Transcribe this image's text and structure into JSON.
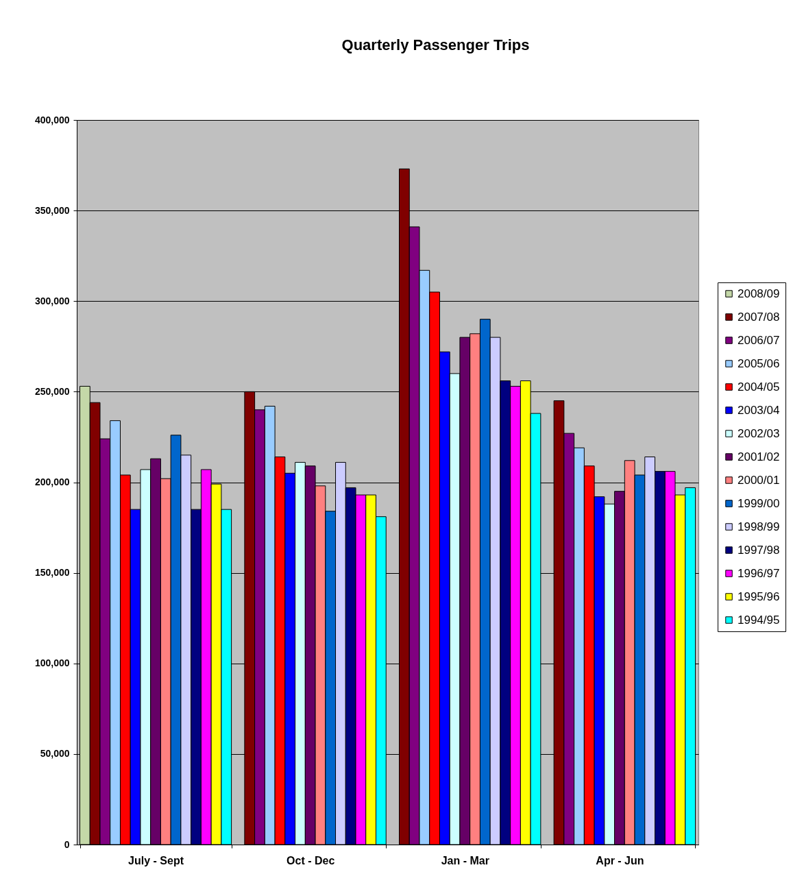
{
  "chart_data": {
    "type": "bar",
    "title": "Quarterly Passenger Trips",
    "categories": [
      "July - Sept",
      "Oct - Dec",
      "Jan - Mar",
      "Apr - Jun"
    ],
    "series": [
      {
        "name": "2008/09",
        "color": "#c4d8a8",
        "values": [
          253000,
          null,
          null,
          null
        ]
      },
      {
        "name": "2007/08",
        "color": "#800000",
        "values": [
          244000,
          250000,
          373000,
          245000
        ]
      },
      {
        "name": "2006/07",
        "color": "#800080",
        "values": [
          224000,
          240000,
          341000,
          227000
        ]
      },
      {
        "name": "2005/06",
        "color": "#99ccff",
        "values": [
          234000,
          242000,
          317000,
          219000
        ]
      },
      {
        "name": "2004/05",
        "color": "#ff0000",
        "values": [
          204000,
          214000,
          305000,
          209000
        ]
      },
      {
        "name": "2003/04",
        "color": "#0000ff",
        "values": [
          185000,
          205000,
          272000,
          192000
        ]
      },
      {
        "name": "2002/03",
        "color": "#ccffff",
        "values": [
          207000,
          211000,
          260000,
          188000
        ]
      },
      {
        "name": "2001/02",
        "color": "#660066",
        "values": [
          213000,
          209000,
          280000,
          195000
        ]
      },
      {
        "name": "2000/01",
        "color": "#ff8080",
        "values": [
          202000,
          198000,
          282000,
          212000
        ]
      },
      {
        "name": "1999/00",
        "color": "#0066cc",
        "values": [
          226000,
          184000,
          290000,
          204000
        ]
      },
      {
        "name": "1998/99",
        "color": "#ccccff",
        "values": [
          215000,
          211000,
          280000,
          214000
        ]
      },
      {
        "name": "1997/98",
        "color": "#000080",
        "values": [
          185000,
          197000,
          256000,
          206000
        ]
      },
      {
        "name": "1996/97",
        "color": "#ff00ff",
        "values": [
          207000,
          193000,
          253000,
          206000
        ]
      },
      {
        "name": "1995/96",
        "color": "#ffff00",
        "values": [
          199000,
          193000,
          256000,
          193000
        ]
      },
      {
        "name": "1994/95",
        "color": "#00ffff",
        "values": [
          185000,
          181000,
          238000,
          197000
        ]
      }
    ],
    "ylim": [
      0,
      400000
    ],
    "yticks": [
      0,
      {
        "value": 50000,
        "label": "50,000"
      },
      {
        "value": 100000,
        "label": "100,000"
      },
      {
        "value": 150000,
        "label": "150,000"
      },
      {
        "value": 200000,
        "label": "200,000"
      },
      {
        "value": 250000,
        "label": "250,000"
      },
      {
        "value": 300000,
        "label": "300,000"
      },
      {
        "value": 350000,
        "label": "350,000"
      },
      {
        "value": 400000,
        "label": "400,000"
      }
    ],
    "grid": "y",
    "legend": "right"
  }
}
